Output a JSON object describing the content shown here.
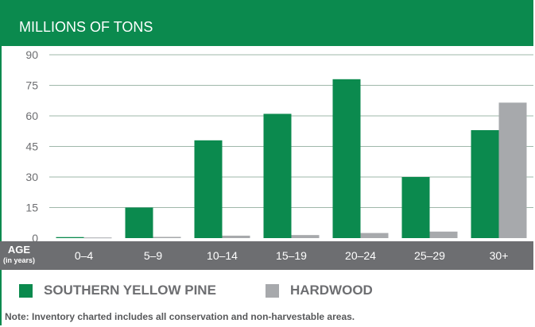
{
  "colors": {
    "pine": "#0b8a4e",
    "hardwood": "#a7a9ac",
    "header_bg": "#0b8a4e",
    "axis_bar": "#6d6e71",
    "grid": "#9fb7aa",
    "tick_text": "#6d6e71"
  },
  "chart_data": {
    "type": "bar",
    "title": "MILLIONS OF TONS",
    "xlabel": "AGE",
    "xlabel_sub": "(in years)",
    "ylabel": "",
    "ylim": [
      0,
      90
    ],
    "yticks": [
      0,
      15,
      30,
      45,
      60,
      75,
      90
    ],
    "grid": true,
    "legend_placement": "bottom-left",
    "categories": [
      "0–4",
      "5–9",
      "10–14",
      "15–19",
      "20–24",
      "25–29",
      "30+"
    ],
    "series": [
      {
        "name": "SOUTHERN YELLOW PINE",
        "values": [
          0.5,
          15,
          48,
          61,
          78,
          30,
          53
        ]
      },
      {
        "name": "HARDWOOD",
        "values": [
          0.3,
          0.6,
          1.2,
          1.5,
          2.5,
          3.2,
          66.5
        ]
      }
    ]
  },
  "note": "Note: Inventory charted includes all conservation and non-harvestable areas."
}
